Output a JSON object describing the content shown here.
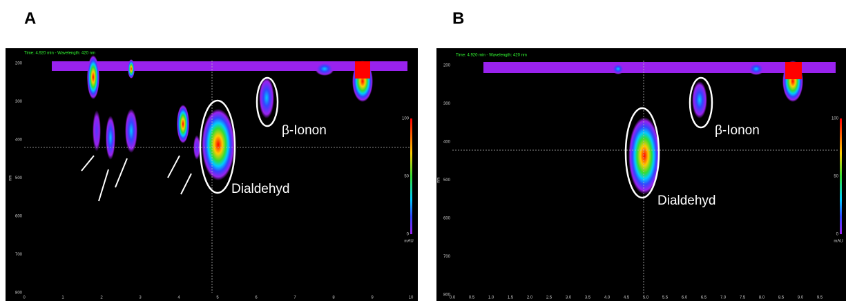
{
  "panels": [
    {
      "label": "A",
      "header": "Time: 4.920 min - Wavelength: 420 nm",
      "y_axis_label": "nm",
      "y_ticks": [
        "200",
        "300",
        "400",
        "500",
        "600",
        "700",
        "800"
      ],
      "x_ticks": [
        "0",
        "1",
        "2",
        "3",
        "4",
        "5",
        "6",
        "7",
        "8",
        "9",
        "10"
      ],
      "colorbar_ticks": [
        "100",
        "50",
        "0"
      ],
      "colorbar_unit": "mAU",
      "annotations": [
        "β-Ionon",
        "Dialdehyd"
      ]
    },
    {
      "label": "B",
      "header": "Time: 4.920 min - Wavelength: 420 nm",
      "y_axis_label": "nm",
      "y_ticks": [
        "200",
        "300",
        "400",
        "500",
        "600",
        "700",
        "800"
      ],
      "x_ticks": [
        "0.0",
        "0.5",
        "1.0",
        "1.5",
        "2.0",
        "2.5",
        "3.0",
        "3.5",
        "4.0",
        "4.5",
        "5.0",
        "5.5",
        "6.0",
        "6.5",
        "7.0",
        "7.5",
        "8.0",
        "8.5",
        "9.0",
        "9.5"
      ],
      "colorbar_ticks": [
        "100",
        "50",
        "0"
      ],
      "colorbar_unit": "mAU",
      "annotations": [
        "β-Ionon",
        "Dialdehyd"
      ]
    }
  ]
}
